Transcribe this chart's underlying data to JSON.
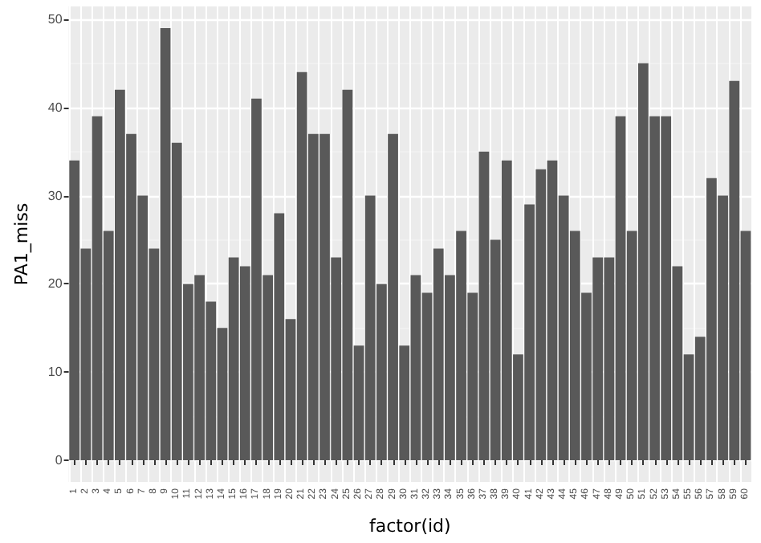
{
  "chart_data": {
    "type": "bar",
    "xlabel": "factor(id)",
    "ylabel": "PA1_miss",
    "categories": [
      "1",
      "2",
      "3",
      "4",
      "5",
      "6",
      "7",
      "8",
      "9",
      "10",
      "11",
      "12",
      "13",
      "14",
      "15",
      "16",
      "17",
      "18",
      "19",
      "20",
      "21",
      "22",
      "23",
      "24",
      "25",
      "26",
      "27",
      "28",
      "29",
      "30",
      "31",
      "32",
      "33",
      "34",
      "35",
      "36",
      "37",
      "38",
      "39",
      "40",
      "41",
      "42",
      "43",
      "44",
      "45",
      "46",
      "47",
      "48",
      "49",
      "50",
      "51",
      "52",
      "53",
      "54",
      "55",
      "56",
      "57",
      "58",
      "59",
      "60"
    ],
    "values": [
      34,
      24,
      39,
      26,
      42,
      37,
      30,
      24,
      49,
      36,
      20,
      21,
      18,
      15,
      23,
      22,
      41,
      21,
      28,
      16,
      44,
      37,
      37,
      23,
      42,
      13,
      30,
      20,
      37,
      13,
      21,
      19,
      24,
      21,
      26,
      19,
      35,
      25,
      34,
      12,
      29,
      33,
      34,
      30,
      26,
      19,
      23,
      23,
      39,
      26,
      45,
      39,
      39,
      22,
      12,
      14,
      32,
      30,
      43,
      26
    ],
    "color": "#595959",
    "ylim": [
      -2.45,
      51.45
    ],
    "yticks": [
      0,
      10,
      20,
      30,
      40,
      50
    ],
    "grid": true
  }
}
